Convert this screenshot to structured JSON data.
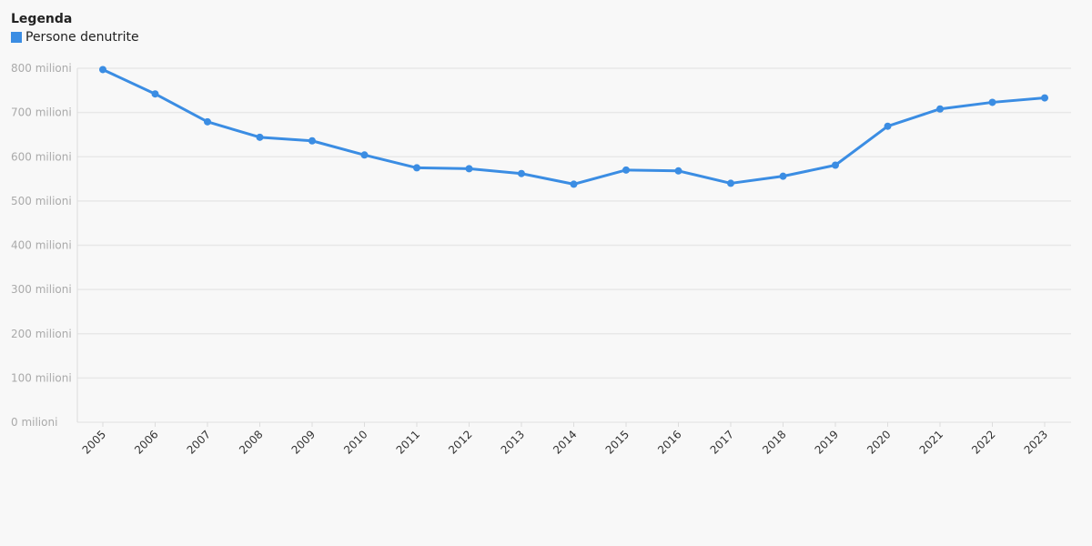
{
  "legend": {
    "title": "Legenda",
    "items": [
      {
        "label": "Persone denutrite",
        "color": "#3b8de3"
      }
    ]
  },
  "chart_data": {
    "type": "line",
    "title": "",
    "xlabel": "",
    "ylabel": "",
    "x": [
      "2005",
      "2006",
      "2007",
      "2008",
      "2009",
      "2010",
      "2011",
      "2012",
      "2013",
      "2014",
      "2015",
      "2016",
      "2017",
      "2018",
      "2019",
      "2020",
      "2021",
      "2022",
      "2023"
    ],
    "series": [
      {
        "name": "Persone denutrite",
        "color": "#3b8de3",
        "values": [
          797,
          742,
          679,
          644,
          636,
          604,
          575,
          573,
          562,
          538,
          570,
          568,
          540,
          556,
          581,
          669,
          708,
          723,
          733
        ]
      }
    ],
    "ylim": [
      0,
      800
    ],
    "yticks": [
      0,
      100,
      200,
      300,
      400,
      500,
      600,
      700,
      800
    ],
    "ytick_labels": [
      "0 milioni",
      "100 milioni",
      "200 milioni",
      "300 milioni",
      "400 milioni",
      "500 milioni",
      "600 milioni",
      "700 milioni",
      "800 milioni"
    ],
    "grid": true,
    "legend_position": "top-left",
    "gridline_color": "#e8e8e8",
    "axis_color": "#dddddd"
  }
}
